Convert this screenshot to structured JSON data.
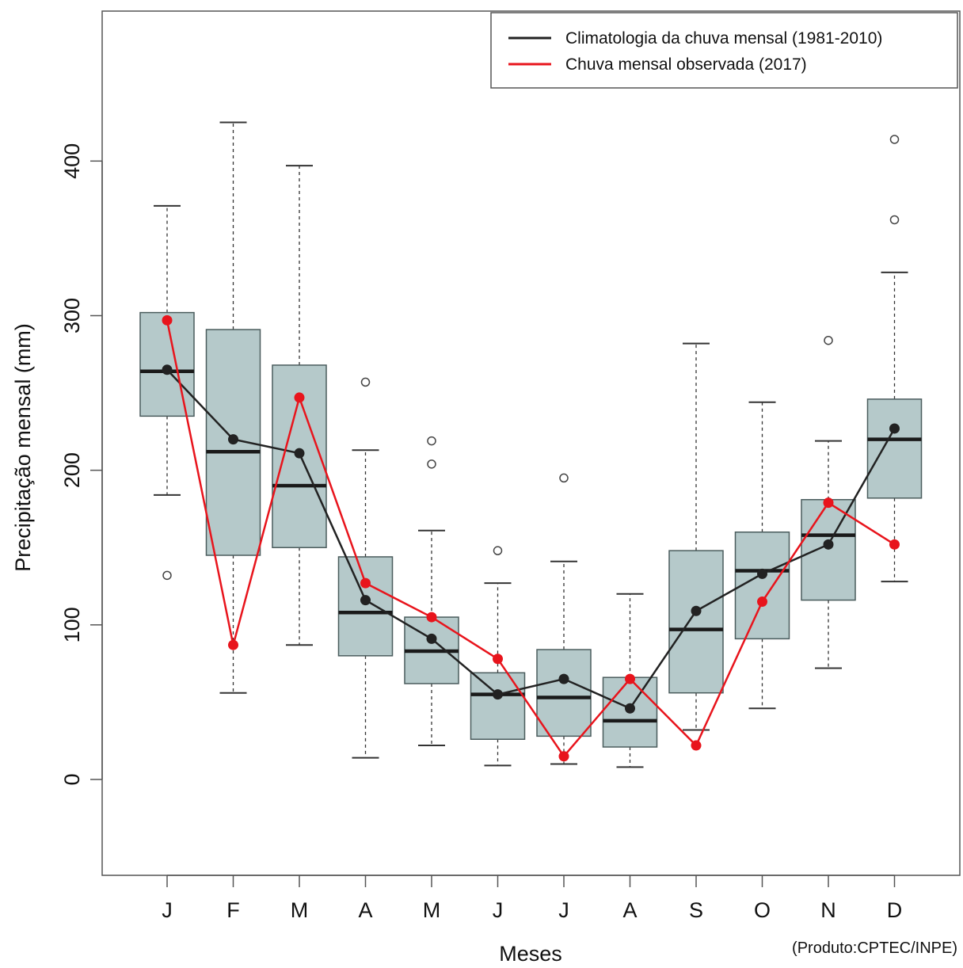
{
  "chart_data": {
    "type": "box",
    "xlabel": "Meses",
    "ylabel": "Precipitação mensal (mm)",
    "ylim": [
      -62,
      497
    ],
    "yticks": [
      0,
      100,
      200,
      300,
      400
    ],
    "categories": [
      "J",
      "F",
      "M",
      "A",
      "M",
      "J",
      "J",
      "A",
      "S",
      "O",
      "N",
      "D"
    ],
    "grid": false,
    "legend_position": "top-right",
    "legend": [
      {
        "label": "Climatologia da chuva mensal (1981-2010)",
        "color": "#222222"
      },
      {
        "label": "Chuva mensal observada (2017)",
        "color": "#e8141c"
      }
    ],
    "boxes": [
      {
        "category": "J",
        "whisker_low": 184,
        "q1": 235,
        "median": 264,
        "q3": 302,
        "whisker_high": 371,
        "outliers": [
          132
        ]
      },
      {
        "category": "F",
        "whisker_low": 56,
        "q1": 145,
        "median": 212,
        "q3": 291,
        "whisker_high": 425,
        "outliers": []
      },
      {
        "category": "M",
        "whisker_low": 87,
        "q1": 150,
        "median": 190,
        "q3": 268,
        "whisker_high": 397,
        "outliers": []
      },
      {
        "category": "A",
        "whisker_low": 14,
        "q1": 80,
        "median": 108,
        "q3": 144,
        "whisker_high": 213,
        "outliers": [
          257
        ]
      },
      {
        "category": "M",
        "whisker_low": 22,
        "q1": 62,
        "median": 83,
        "q3": 105,
        "whisker_high": 161,
        "outliers": [
          204,
          219
        ]
      },
      {
        "category": "J",
        "whisker_low": 9,
        "q1": 26,
        "median": 55,
        "q3": 69,
        "whisker_high": 127,
        "outliers": [
          148
        ]
      },
      {
        "category": "J",
        "whisker_low": 10,
        "q1": 28,
        "median": 53,
        "q3": 84,
        "whisker_high": 141,
        "outliers": [
          195
        ]
      },
      {
        "category": "A",
        "whisker_low": 8,
        "q1": 21,
        "median": 38,
        "q3": 66,
        "whisker_high": 120,
        "outliers": []
      },
      {
        "category": "S",
        "whisker_low": 32,
        "q1": 56,
        "median": 97,
        "q3": 148,
        "whisker_high": 282,
        "outliers": []
      },
      {
        "category": "O",
        "whisker_low": 46,
        "q1": 91,
        "median": 135,
        "q3": 160,
        "whisker_high": 244,
        "outliers": []
      },
      {
        "category": "N",
        "whisker_low": 72,
        "q1": 116,
        "median": 158,
        "q3": 181,
        "whisker_high": 219,
        "outliers": [
          284
        ]
      },
      {
        "category": "D",
        "whisker_low": 128,
        "q1": 182,
        "median": 220,
        "q3": 246,
        "whisker_high": 328,
        "outliers": [
          362,
          414
        ]
      }
    ],
    "series": [
      {
        "name": "Climatologia da chuva mensal (1981-2010)",
        "color": "#222222",
        "values": [
          265,
          220,
          211,
          116,
          91,
          55,
          65,
          46,
          109,
          133,
          152,
          227
        ]
      },
      {
        "name": "Chuva mensal observada (2017)",
        "color": "#e8141c",
        "values": [
          297,
          87,
          247,
          127,
          105,
          78,
          15,
          65,
          22,
          115,
          179,
          152
        ]
      }
    ],
    "box_fill": "#b5c9ca",
    "box_stroke": "#4a5c5d"
  },
  "credit": "(Produto:CPTEC/INPE)"
}
